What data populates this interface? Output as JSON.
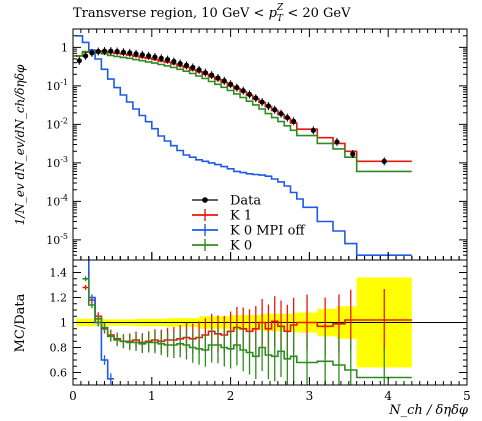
{
  "chart_data": {
    "type": "line",
    "title": "Transverse region, 10 GeV < p_T^Z < 20 GeV",
    "title_parts": {
      "pre": "Transverse region, 10 GeV < ",
      "var": "p",
      "sub": "T",
      "sup": "Z",
      "post": " < 20 GeV"
    },
    "xlabel": "N_ch / δηδφ",
    "ylabel": "1/N_ev dN_ev/dN_ch/δηδφ",
    "ratio_ylabel": "MC/Data",
    "xlim": [
      0,
      5
    ],
    "ylim": [
      3e-06,
      3
    ],
    "yscale": "log",
    "ratio_ylim": [
      0.5,
      1.5
    ],
    "legend_position": "bottom-center",
    "x_ticks": [
      "0",
      "1",
      "2",
      "3",
      "4",
      "5"
    ],
    "y_ticks": [
      "1",
      "10^-1",
      "10^-2",
      "10^-3",
      "10^-4",
      "10^-5"
    ],
    "ratio_ticks": [
      "0.6",
      "0.8",
      "1",
      "1.2",
      "1.4"
    ],
    "series": [
      {
        "name": "Data",
        "color": "#000000",
        "style": "markers",
        "x": [
          0.08,
          0.16,
          0.24,
          0.32,
          0.4,
          0.48,
          0.56,
          0.64,
          0.72,
          0.8,
          0.88,
          0.96,
          1.04,
          1.12,
          1.2,
          1.28,
          1.36,
          1.44,
          1.52,
          1.6,
          1.68,
          1.76,
          1.84,
          1.92,
          2.0,
          2.08,
          2.16,
          2.24,
          2.32,
          2.4,
          2.48,
          2.56,
          2.64,
          2.72,
          2.8,
          3.05,
          3.35,
          3.55,
          3.95
        ],
        "y": [
          0.45,
          0.6,
          0.72,
          0.78,
          0.8,
          0.8,
          0.78,
          0.75,
          0.72,
          0.68,
          0.64,
          0.6,
          0.56,
          0.52,
          0.48,
          0.43,
          0.38,
          0.34,
          0.3,
          0.26,
          0.22,
          0.19,
          0.16,
          0.135,
          0.11,
          0.09,
          0.075,
          0.06,
          0.048,
          0.038,
          0.03,
          0.024,
          0.019,
          0.015,
          0.012,
          0.007,
          0.0035,
          0.0017,
          0.0011
        ]
      },
      {
        "name": "K 1",
        "color": "#e8180c",
        "style": "steps",
        "edges": [
          0.04,
          0.12,
          0.2,
          0.28,
          0.36,
          0.44,
          0.52,
          0.6,
          0.68,
          0.76,
          0.84,
          0.92,
          1.0,
          1.08,
          1.16,
          1.24,
          1.32,
          1.4,
          1.48,
          1.56,
          1.64,
          1.72,
          1.8,
          1.88,
          1.96,
          2.04,
          2.12,
          2.2,
          2.28,
          2.36,
          2.44,
          2.52,
          2.6,
          2.68,
          2.76,
          2.84,
          3.1,
          3.3,
          3.45,
          3.6,
          4.3
        ],
        "y": [
          0.6,
          0.75,
          0.8,
          0.8,
          0.78,
          0.74,
          0.7,
          0.67,
          0.63,
          0.59,
          0.55,
          0.52,
          0.48,
          0.44,
          0.41,
          0.37,
          0.33,
          0.3,
          0.26,
          0.23,
          0.2,
          0.17,
          0.145,
          0.122,
          0.1,
          0.084,
          0.07,
          0.057,
          0.046,
          0.037,
          0.029,
          0.023,
          0.018,
          0.0142,
          0.0108,
          0.0075,
          0.0045,
          0.0032,
          0.002,
          0.0011
        ]
      },
      {
        "name": "K 0 MPI off",
        "color": "#1f5ae6",
        "style": "steps",
        "edges": [
          0.04,
          0.12,
          0.2,
          0.28,
          0.36,
          0.44,
          0.52,
          0.6,
          0.68,
          0.76,
          0.84,
          0.92,
          1.0,
          1.08,
          1.16,
          1.24,
          1.32,
          1.4,
          1.48,
          1.56,
          1.64,
          1.72,
          1.8,
          1.88,
          1.96,
          2.04,
          2.12,
          2.2,
          2.28,
          2.36,
          2.44,
          2.52,
          2.6,
          2.68,
          2.76,
          2.84,
          2.92,
          3.1,
          3.3,
          3.45,
          3.6,
          4.3
        ],
        "y": [
          2.0,
          1.35,
          0.85,
          0.5,
          0.27,
          0.15,
          0.09,
          0.058,
          0.038,
          0.025,
          0.017,
          0.0117,
          0.0077,
          0.005,
          0.0037,
          0.0028,
          0.0021,
          0.0016,
          0.0014,
          0.0012,
          0.0011,
          0.001,
          0.0009,
          0.0008,
          0.0007,
          0.0006,
          0.00056,
          0.00052,
          0.0005,
          0.00048,
          0.00045,
          0.00038,
          0.00032,
          0.00025,
          0.00017,
          0.000115,
          7e-05,
          3e-05,
          1.7e-05,
          8e-06,
          4e-06
        ]
      },
      {
        "name": "K 0",
        "color": "#2e8b20",
        "style": "steps",
        "edges": [
          0.04,
          0.12,
          0.2,
          0.28,
          0.36,
          0.44,
          0.52,
          0.6,
          0.68,
          0.76,
          0.84,
          0.92,
          1.0,
          1.08,
          1.16,
          1.24,
          1.32,
          1.4,
          1.48,
          1.56,
          1.64,
          1.72,
          1.8,
          1.88,
          1.96,
          2.04,
          2.12,
          2.2,
          2.28,
          2.36,
          2.44,
          2.52,
          2.6,
          2.68,
          2.76,
          2.84,
          3.1,
          3.3,
          3.45,
          3.6,
          4.3
        ],
        "y": [
          0.6,
          0.78,
          0.78,
          0.73,
          0.68,
          0.62,
          0.58,
          0.55,
          0.52,
          0.48,
          0.45,
          0.42,
          0.39,
          0.36,
          0.33,
          0.3,
          0.27,
          0.24,
          0.21,
          0.18,
          0.155,
          0.13,
          0.11,
          0.092,
          0.076,
          0.062,
          0.05,
          0.04,
          0.032,
          0.025,
          0.019,
          0.015,
          0.0118,
          0.0092,
          0.007,
          0.0051,
          0.0032,
          0.0023,
          0.0014,
          0.0006
        ]
      }
    ],
    "ratios": [
      {
        "name": "K 1",
        "color": "#e8180c",
        "edges": [
          0.12,
          0.2,
          0.28,
          0.36,
          0.44,
          0.52,
          0.6,
          0.68,
          0.76,
          0.84,
          0.92,
          1.0,
          1.08,
          1.16,
          1.24,
          1.32,
          1.4,
          1.48,
          1.56,
          1.64,
          1.72,
          1.8,
          1.88,
          1.96,
          2.04,
          2.12,
          2.2,
          2.28,
          2.36,
          2.44,
          2.52,
          2.6,
          2.68,
          2.76,
          2.84,
          3.1,
          3.3,
          3.45,
          3.6,
          4.3
        ],
        "y": [
          1.28,
          1.18,
          1.05,
          0.95,
          0.9,
          0.87,
          0.85,
          0.85,
          0.86,
          0.84,
          0.85,
          0.86,
          0.85,
          0.86,
          0.86,
          0.87,
          0.88,
          0.87,
          0.88,
          0.9,
          0.93,
          0.91,
          0.9,
          0.93,
          0.96,
          0.95,
          0.93,
          0.95,
          1.0,
          0.95,
          1.01,
          0.97,
          0.93,
          0.98,
          1.0,
          0.97,
          0.99,
          1.02,
          1.02
        ]
      },
      {
        "name": "K 0 MPI off",
        "color": "#1f5ae6",
        "edges": [
          0.12,
          0.2,
          0.28,
          0.36,
          0.44,
          0.52
        ],
        "y": [
          1.55,
          1.2,
          1.0,
          0.7,
          0.55
        ]
      },
      {
        "name": "K 0",
        "color": "#2e8b20",
        "edges": [
          0.12,
          0.2,
          0.28,
          0.36,
          0.44,
          0.52,
          0.6,
          0.68,
          0.76,
          0.84,
          0.92,
          1.0,
          1.08,
          1.16,
          1.24,
          1.32,
          1.4,
          1.48,
          1.56,
          1.64,
          1.72,
          1.8,
          1.88,
          1.96,
          2.04,
          2.12,
          2.2,
          2.28,
          2.36,
          2.44,
          2.52,
          2.6,
          2.68,
          2.76,
          2.84,
          3.1,
          3.3,
          3.45,
          3.6,
          4.3
        ],
        "y": [
          1.35,
          1.14,
          1.03,
          0.96,
          0.89,
          0.86,
          0.85,
          0.84,
          0.84,
          0.83,
          0.84,
          0.84,
          0.83,
          0.82,
          0.82,
          0.83,
          0.82,
          0.8,
          0.79,
          0.78,
          0.82,
          0.82,
          0.8,
          0.79,
          0.82,
          0.78,
          0.76,
          0.73,
          0.8,
          0.74,
          0.73,
          0.77,
          0.71,
          0.73,
          0.68,
          0.69,
          0.66,
          0.62,
          0.56
        ]
      }
    ],
    "data_band": {
      "edges": [
        0.04,
        0.4,
        0.8,
        1.2,
        1.6,
        2.0,
        2.4,
        2.8,
        3.1,
        3.35,
        3.6,
        4.3
      ],
      "half_width": [
        0.03,
        0.025,
        0.03,
        0.035,
        0.05,
        0.06,
        0.07,
        0.08,
        0.11,
        0.13,
        0.36
      ]
    }
  }
}
